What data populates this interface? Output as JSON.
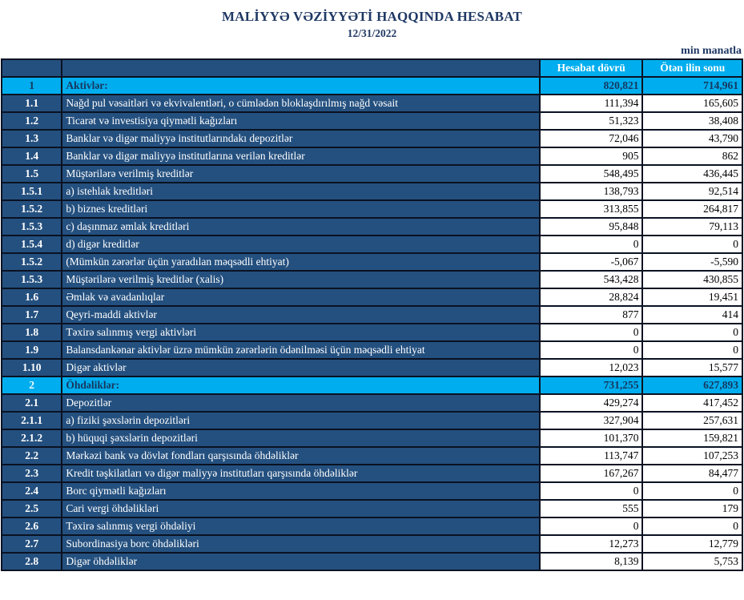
{
  "header": {
    "title": "MALİYYƏ VƏZİYYƏTİ HAQQINDA HESABAT",
    "date": "12/31/2022",
    "unit_note": "min manatla"
  },
  "table": {
    "column_headers": {
      "current": "Hesabat dövrü",
      "previous": "Ötən ilin sonu"
    },
    "rows": [
      {
        "num": "1",
        "label": "Aktivlər:",
        "current": "820,821",
        "previous": "714,961",
        "section": true,
        "num_light": false
      },
      {
        "num": "1.1",
        "label": "Nağd pul vəsaitləri və  ekvivalentləri, o cümlədən bloklaşdırılmış nağd vəsait",
        "current": "111,394",
        "previous": "165,605"
      },
      {
        "num": "1.2",
        "label": "Ticarət və investisiya qiymətli kağızları",
        "current": "51,323",
        "previous": "38,408"
      },
      {
        "num": "1.3",
        "label": "Banklar və digər maliyyə institutlarındakı depozitlər",
        "current": "72,046",
        "previous": "43,790"
      },
      {
        "num": "1.4",
        "label": "Banklar və digər maliyyə institutlarına verilən kreditlər",
        "current": "905",
        "previous": "862"
      },
      {
        "num": "1.5",
        "label": "Müştərilərə verilmiş kreditlər",
        "current": "548,495",
        "previous": "436,445"
      },
      {
        "num": "1.5.1",
        "label": "a) istehlak kreditləri",
        "current": "138,793",
        "previous": "92,514"
      },
      {
        "num": "1.5.2",
        "label": "b) biznes kreditləri",
        "current": "313,855",
        "previous": "264,817"
      },
      {
        "num": "1.5.3",
        "label": "c) daşınmaz əmlak kreditləri",
        "current": "95,848",
        "previous": "79,113"
      },
      {
        "num": "1.5.4",
        "label": "d) digər kreditlər",
        "current": "0",
        "previous": "0"
      },
      {
        "num": "1.5.2",
        "label": "(Mümkün zərərlər üçün yaradılan məqsədli ehtiyat)",
        "current": "-5,067",
        "previous": "-5,590"
      },
      {
        "num": "1.5.3",
        "label": "Müştərilərə verilmiş kreditlər (xalis)",
        "current": "543,428",
        "previous": "430,855"
      },
      {
        "num": "1.6",
        "label": "Əmlak və avadanlıqlar",
        "current": "28,824",
        "previous": "19,451"
      },
      {
        "num": "1.7",
        "label": "Qeyri-maddi aktivlər",
        "current": "877",
        "previous": "414"
      },
      {
        "num": "1.8",
        "label": "Təxirə salınmış vergi aktivləri",
        "current": "0",
        "previous": "0"
      },
      {
        "num": "1.9",
        "label": "Balansdankənar aktivlər üzrə mümkün zərərlərin ödənilməsi üçün məqsədli ehtiyat",
        "current": "0",
        "previous": "0"
      },
      {
        "num": "1.10",
        "label": "Digər aktivlər",
        "current": "12,023",
        "previous": "15,577"
      },
      {
        "num": "2",
        "label": "Öhdəliklər:",
        "current": "731,255",
        "previous": "627,893",
        "section": true,
        "num_light": true
      },
      {
        "num": "2.1",
        "label": "Depozitlər",
        "current": "429,274",
        "previous": "417,452"
      },
      {
        "num": "2.1.1",
        "label": "a) fiziki şəxslərin depozitləri",
        "current": "327,904",
        "previous": "257,631"
      },
      {
        "num": "2.1.2",
        "label": "b) hüquqi şəxslərin depozitləri",
        "current": "101,370",
        "previous": "159,821"
      },
      {
        "num": "2.2",
        "label": "Mərkəzi bank və dövlət fondları qarşısında öhdəliklər",
        "current": "113,747",
        "previous": "107,253"
      },
      {
        "num": "2.3",
        "label": "Kredit təşkilatları və digər maliyyə institutları qarşısında öhdəliklər",
        "current": "167,267",
        "previous": "84,477"
      },
      {
        "num": "2.4",
        "label": "Borc qiymətli kağızları",
        "current": "0",
        "previous": "0"
      },
      {
        "num": "2.5",
        "label": "Cari vergi öhdəlikləri",
        "current": "555",
        "previous": "179"
      },
      {
        "num": "2.6",
        "label": "Təxirə salınmış vergi öhdəliyi",
        "current": "0",
        "previous": "0"
      },
      {
        "num": "2.7",
        "label": "Subordinasiya borc öhdəlikləri",
        "current": "12,273",
        "previous": "12,779"
      },
      {
        "num": "2.8",
        "label": "Digər öhdəliklər",
        "current": "8,139",
        "previous": "5,753"
      }
    ]
  },
  "colors": {
    "navy_row_bg": "#24507f",
    "cyan_accent": "#00aeef",
    "border": "#0a1222",
    "dark_text": "#17375e",
    "title_text": "#1f3864"
  }
}
